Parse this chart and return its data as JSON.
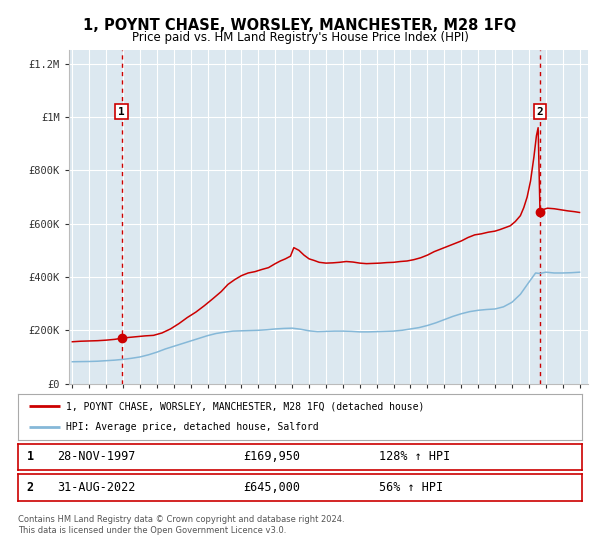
{
  "title": "1, POYNT CHASE, WORSLEY, MANCHESTER, M28 1FQ",
  "subtitle": "Price paid vs. HM Land Registry's House Price Index (HPI)",
  "bg_color": "#dce8f0",
  "fig_bg_color": "#ffffff",
  "grid_color": "#ffffff",
  "sale1_date_num": 1997.91,
  "sale1_price": 169950,
  "sale1_label": "1",
  "sale2_date_num": 2022.66,
  "sale2_price": 645000,
  "sale2_label": "2",
  "red_line_color": "#cc0000",
  "blue_line_color": "#85b8d8",
  "dashed_line_color": "#cc0000",
  "legend_label1": "1, POYNT CHASE, WORSLEY, MANCHESTER, M28 1FQ (detached house)",
  "legend_label2": "HPI: Average price, detached house, Salford",
  "table_row1": [
    "1",
    "28-NOV-1997",
    "£169,950",
    "128% ↑ HPI"
  ],
  "table_row2": [
    "2",
    "31-AUG-2022",
    "£645,000",
    "56% ↑ HPI"
  ],
  "footer1": "Contains HM Land Registry data © Crown copyright and database right 2024.",
  "footer2": "This data is licensed under the Open Government Licence v3.0.",
  "ylim_max": 1250000,
  "xlim_min": 1994.8,
  "xlim_max": 2025.5,
  "red_line_x": [
    1995.0,
    1995.5,
    1996.0,
    1996.5,
    1997.0,
    1997.5,
    1997.91,
    1998.3,
    1998.8,
    1999.3,
    1999.8,
    2000.3,
    2000.8,
    2001.3,
    2001.8,
    2002.3,
    2002.8,
    2003.3,
    2003.8,
    2004.2,
    2004.6,
    2005.0,
    2005.4,
    2005.8,
    2006.2,
    2006.6,
    2007.0,
    2007.3,
    2007.6,
    2007.9,
    2008.1,
    2008.4,
    2008.7,
    2009.0,
    2009.3,
    2009.6,
    2010.0,
    2010.4,
    2010.8,
    2011.2,
    2011.6,
    2012.0,
    2012.4,
    2012.8,
    2013.2,
    2013.6,
    2014.0,
    2014.4,
    2014.8,
    2015.2,
    2015.6,
    2016.0,
    2016.4,
    2016.8,
    2017.2,
    2017.6,
    2018.0,
    2018.4,
    2018.8,
    2019.2,
    2019.6,
    2020.0,
    2020.3,
    2020.6,
    2020.9,
    2021.2,
    2021.5,
    2021.7,
    2021.9,
    2022.1,
    2022.3,
    2022.45,
    2022.55,
    2022.66,
    2022.8,
    2023.1,
    2023.5,
    2023.9,
    2024.3,
    2024.7,
    2025.0
  ],
  "red_line_y": [
    157000,
    159000,
    160000,
    161000,
    163000,
    166000,
    169950,
    173000,
    176000,
    179000,
    181000,
    190000,
    205000,
    225000,
    248000,
    268000,
    292000,
    318000,
    345000,
    372000,
    390000,
    405000,
    415000,
    420000,
    428000,
    435000,
    450000,
    460000,
    468000,
    478000,
    510000,
    500000,
    482000,
    468000,
    462000,
    455000,
    452000,
    453000,
    455000,
    458000,
    456000,
    452000,
    450000,
    451000,
    452000,
    454000,
    455000,
    458000,
    460000,
    465000,
    472000,
    482000,
    495000,
    505000,
    515000,
    525000,
    535000,
    548000,
    558000,
    562000,
    568000,
    572000,
    578000,
    585000,
    592000,
    608000,
    630000,
    660000,
    700000,
    760000,
    850000,
    930000,
    960000,
    645000,
    652000,
    658000,
    656000,
    652000,
    648000,
    645000,
    642000
  ],
  "blue_line_x": [
    1995.0,
    1995.5,
    1996.0,
    1996.5,
    1997.0,
    1997.5,
    1998.0,
    1998.5,
    1999.0,
    1999.5,
    2000.0,
    2000.5,
    2001.0,
    2001.5,
    2002.0,
    2002.5,
    2003.0,
    2003.5,
    2004.0,
    2004.5,
    2005.0,
    2005.5,
    2006.0,
    2006.5,
    2007.0,
    2007.5,
    2008.0,
    2008.5,
    2009.0,
    2009.5,
    2010.0,
    2010.5,
    2011.0,
    2011.5,
    2012.0,
    2012.5,
    2013.0,
    2013.5,
    2014.0,
    2014.5,
    2015.0,
    2015.5,
    2016.0,
    2016.5,
    2017.0,
    2017.5,
    2018.0,
    2018.5,
    2019.0,
    2019.5,
    2020.0,
    2020.5,
    2021.0,
    2021.5,
    2022.0,
    2022.4,
    2022.66,
    2023.0,
    2023.5,
    2024.0,
    2024.5,
    2025.0
  ],
  "blue_line_y": [
    82000,
    82500,
    83000,
    84000,
    86000,
    88000,
    91000,
    95000,
    100000,
    108000,
    118000,
    130000,
    140000,
    150000,
    160000,
    170000,
    180000,
    188000,
    193000,
    197000,
    198000,
    199000,
    200000,
    202000,
    205000,
    207000,
    208000,
    204000,
    198000,
    195000,
    196000,
    197000,
    197000,
    196000,
    194000,
    194000,
    195000,
    196000,
    197000,
    200000,
    205000,
    210000,
    218000,
    228000,
    240000,
    252000,
    262000,
    270000,
    275000,
    278000,
    280000,
    288000,
    305000,
    335000,
    380000,
    415000,
    413000,
    418000,
    415000,
    415000,
    416000,
    418000
  ]
}
